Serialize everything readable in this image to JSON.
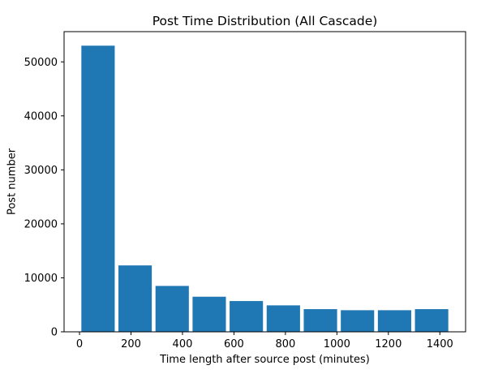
{
  "chart_data": {
    "type": "bar",
    "title": "Post Time Distribution (All Cascade)",
    "xlabel": "Time length after source post (minutes)",
    "ylabel": "Post number",
    "bin_edges": [
      0,
      144,
      288,
      432,
      576,
      720,
      864,
      1008,
      1152,
      1296,
      1440
    ],
    "values": [
      53000,
      12300,
      8500,
      6500,
      5700,
      4900,
      4200,
      4000,
      4000,
      4200
    ],
    "xlim": [
      -60,
      1500
    ],
    "ylim": [
      0,
      55600
    ],
    "x_ticks": [
      0,
      200,
      400,
      600,
      800,
      1000,
      1200,
      1400
    ],
    "y_ticks": [
      0,
      10000,
      20000,
      30000,
      40000,
      50000
    ],
    "bar_color": "#1f77b4",
    "grid": false,
    "legend": "none"
  }
}
